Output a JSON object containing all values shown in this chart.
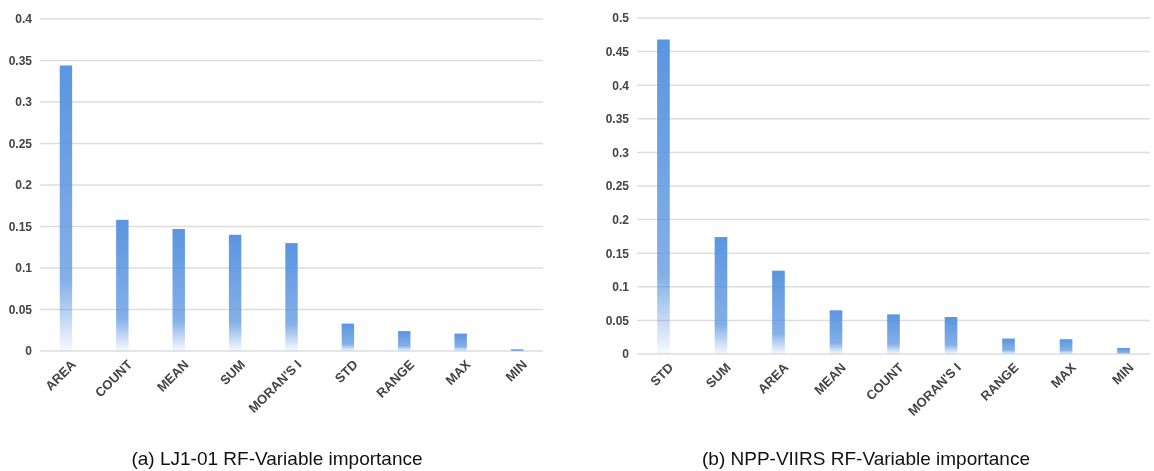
{
  "chart_data": [
    {
      "type": "bar",
      "title": "(a)  LJ1-01 RF-Variable importance",
      "categories": [
        "AREA",
        "COUNT",
        "MEAN",
        "SUM",
        "MORAN'S I",
        "STD",
        "RANGE",
        "MAX",
        "MIN"
      ],
      "values": [
        0.344,
        0.158,
        0.147,
        0.14,
        0.13,
        0.033,
        0.024,
        0.021,
        0.002
      ],
      "color": "#5b95e0",
      "ylim": [
        0,
        0.4
      ],
      "yticks": [
        0,
        0.05,
        0.1,
        0.15,
        0.2,
        0.25,
        0.3,
        0.35,
        0.4
      ],
      "grid": "y"
    },
    {
      "type": "bar",
      "title": "(b)  NPP-VIIRS RF-Variable importance",
      "categories": [
        "STD",
        "SUM",
        "AREA",
        "MEAN",
        "COUNT",
        "MORAN'S I",
        "RANGE",
        "MAX",
        "MIN"
      ],
      "values": [
        0.468,
        0.174,
        0.124,
        0.065,
        0.059,
        0.055,
        0.023,
        0.022,
        0.009
      ],
      "color": "#5b95e0",
      "ylim": [
        0,
        0.5
      ],
      "yticks": [
        0,
        0.05,
        0.1,
        0.15,
        0.2,
        0.25,
        0.3,
        0.35,
        0.4,
        0.45,
        0.5
      ],
      "grid": "y"
    }
  ]
}
